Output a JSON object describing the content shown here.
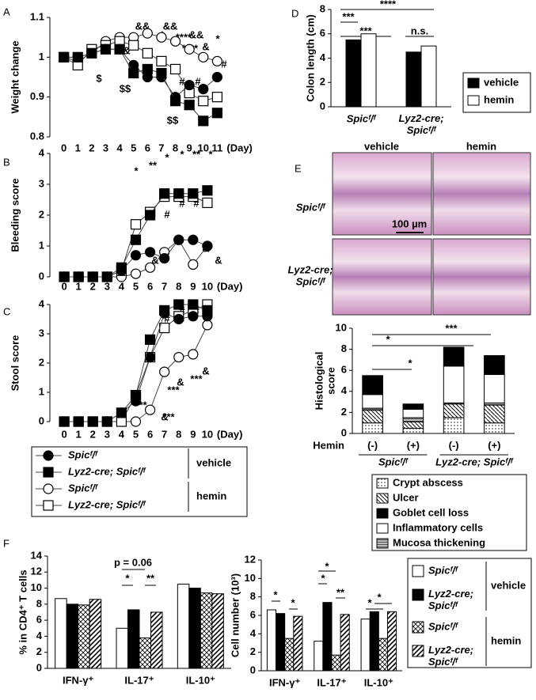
{
  "chart_data": [
    {
      "panel": "A",
      "type": "line",
      "ylabel": "Weight change",
      "xlabel": "(Day)",
      "x": [
        0,
        1,
        2,
        3,
        4,
        5,
        6,
        7,
        8,
        9,
        10,
        11
      ],
      "xlim": [
        -1,
        12
      ],
      "xticks": [
        0,
        1,
        2,
        3,
        4,
        5,
        6,
        7,
        8,
        9,
        10,
        11
      ],
      "ylim": [
        0.8,
        1.1
      ],
      "yticks": [
        0.8,
        0.9,
        1,
        1.1
      ],
      "series": [
        {
          "name": "Spicᶠ/ᶠ",
          "marker": "circle",
          "color": "#000000",
          "values": [
            1,
            1,
            1.01,
            1.02,
            1.02,
            0.98,
            0.95,
            0.95,
            0.9,
            0.93,
            0.92,
            0.95
          ]
        },
        {
          "name": "Lyz2-cre; Spicᶠ/ᶠ",
          "marker": "square",
          "color": "#000000",
          "values": [
            1,
            1,
            1.01,
            1.02,
            1.02,
            0.96,
            0.97,
            0.96,
            0.89,
            0.88,
            0.84,
            0.86
          ]
        },
        {
          "name": "Spicᶠ/ᶠ",
          "marker": "circle",
          "color": "#ffffff",
          "values": [
            1,
            0.99,
            1.01,
            1.04,
            1.05,
            1.05,
            1.06,
            1.05,
            1.04,
            1.02,
            1.0,
            0.99
          ]
        },
        {
          "name": "Lyz2-cre; Spicᶠ/ᶠ",
          "marker": "square",
          "color": "#ffffff",
          "values": [
            1,
            0.98,
            1.02,
            1.03,
            1.04,
            1.03,
            1.01,
            0.99,
            0.97,
            0.91,
            0.89,
            0.9
          ]
        }
      ],
      "legend_groups": [
        "vehicle",
        "hemin"
      ],
      "annotations": [
        "$",
        "$$",
        "$$",
        "&",
        "&&",
        "&&",
        "*",
        "****",
        "&&",
        "****",
        "&",
        "*",
        "#",
        "#",
        "#"
      ]
    },
    {
      "panel": "B",
      "type": "line",
      "ylabel": "Bleeding score",
      "xlabel": "(Day)",
      "x": [
        0,
        1,
        2,
        3,
        4,
        5,
        6,
        7,
        8,
        9,
        10
      ],
      "xlim": [
        -1,
        11
      ],
      "xticks": [
        0,
        1,
        2,
        3,
        4,
        5,
        6,
        7,
        8,
        9,
        10
      ],
      "ylim": [
        0,
        4
      ],
      "yticks": [
        0,
        1,
        2,
        3,
        4
      ],
      "series": [
        {
          "marker": "circle",
          "color": "#000000",
          "values": [
            0,
            0,
            0,
            0,
            0.2,
            0.7,
            0.8,
            0.6,
            1.2,
            1.2,
            1.0
          ]
        },
        {
          "marker": "square",
          "color": "#000000",
          "values": [
            0,
            0,
            0,
            0,
            0.3,
            1.2,
            2.0,
            2.7,
            2.7,
            2.7,
            2.8
          ]
        },
        {
          "marker": "circle",
          "color": "#ffffff",
          "values": [
            0,
            0,
            0,
            0,
            0,
            0.1,
            0.3,
            0.8,
            1.2,
            0.4,
            1.0
          ]
        },
        {
          "marker": "square",
          "color": "#ffffff",
          "values": [
            0,
            0,
            0,
            0,
            0.2,
            1.7,
            2.1,
            2.6,
            2.6,
            2.6,
            2.4
          ]
        }
      ],
      "annotations": [
        "*",
        "**",
        "*",
        "*",
        "**",
        "*",
        "#",
        "#",
        "#",
        "&",
        "&",
        "&"
      ]
    },
    {
      "panel": "C",
      "type": "line",
      "ylabel": "Stool score",
      "xlabel": "(Day)",
      "x": [
        0,
        1,
        2,
        3,
        4,
        5,
        6,
        7,
        8,
        9,
        10
      ],
      "xlim": [
        -1,
        11
      ],
      "xticks": [
        0,
        1,
        2,
        3,
        4,
        5,
        6,
        7,
        8,
        9,
        10
      ],
      "ylim": [
        0,
        4
      ],
      "yticks": [
        0,
        1,
        2,
        3,
        4
      ],
      "series": [
        {
          "marker": "circle",
          "color": "#000000",
          "values": [
            0,
            0,
            0,
            0,
            0.3,
            0.7,
            2.2,
            3.7,
            3.5,
            3.6,
            3.6
          ]
        },
        {
          "marker": "square",
          "color": "#000000",
          "values": [
            0,
            0,
            0,
            0,
            0.3,
            0.9,
            2.8,
            3.8,
            4.0,
            4.0,
            3.8
          ]
        },
        {
          "marker": "circle",
          "color": "#ffffff",
          "values": [
            0,
            0,
            0,
            0,
            0,
            0,
            0.4,
            1.7,
            2.2,
            2.3,
            3.3
          ]
        },
        {
          "marker": "square",
          "color": "#ffffff",
          "values": [
            0,
            0,
            0,
            0,
            0,
            0.9,
            2.2,
            3.2,
            3.6,
            3.8,
            4.0
          ]
        }
      ],
      "annotations": [
        "#",
        "#",
        "#",
        "***",
        "***",
        "***",
        "&",
        "&",
        "***",
        "&"
      ]
    },
    {
      "panel": "D",
      "type": "bar",
      "ylabel": "Colon length (cm)",
      "categories": [
        "Spicᶠ/ᶠ",
        "Lyz2-cre;\nSpicᶠ/ᶠ"
      ],
      "ylim": [
        0,
        8
      ],
      "yticks": [
        0,
        2,
        4,
        6,
        8
      ],
      "series": [
        {
          "name": "vehicle",
          "color": "#000000",
          "values": [
            5.5,
            4.5
          ]
        },
        {
          "name": "hemin",
          "color": "#ffffff",
          "values": [
            6.0,
            5.0
          ]
        }
      ],
      "annotations": [
        "***",
        "***",
        "****",
        "n.s."
      ]
    },
    {
      "panel": "E",
      "type": "bar",
      "stacked": true,
      "ylabel": "Histological\nscore",
      "column_titles": [
        "vehicle",
        "hemin"
      ],
      "row_titles": [
        "Spicᶠ/ᶠ",
        "Lyz2-cre;\nSpicᶠ/ᶠ"
      ],
      "scale_bar": "100 µm",
      "row_label": "Hemin",
      "categories": [
        "(-)",
        "(+)",
        "(-)",
        "(+)"
      ],
      "groups": [
        "Spicᶠ/ᶠ",
        "Lyz2-cre; Spicᶠ/ᶠ"
      ],
      "ylim": [
        0,
        10
      ],
      "yticks": [
        0,
        2,
        4,
        6,
        8,
        10
      ],
      "series": [
        {
          "name": "Crypt abscess",
          "color": "#ffffff",
          "pattern": "dots",
          "values": [
            1.0,
            0.5,
            1.5,
            1.0
          ]
        },
        {
          "name": "Ulcer",
          "color": "#ffffff",
          "pattern": "diag",
          "values": [
            1.2,
            0.6,
            1.3,
            1.7
          ]
        },
        {
          "name": "Goblet cell loss",
          "color": "#000000",
          "values": [
            1.8,
            0.5,
            1.8,
            1.8
          ]
        },
        {
          "name": "Inflammatory cells",
          "color": "#ffffff",
          "values": [
            1.3,
            0.8,
            3.5,
            2.7
          ]
        },
        {
          "name": "Mucosa thickening",
          "color": "#ffffff",
          "pattern": "mucosa",
          "values": [
            0.2,
            0.4,
            0.1,
            0.2
          ]
        }
      ],
      "annotations": [
        "***",
        "*",
        "*"
      ]
    },
    {
      "panel": "F",
      "type": "bar",
      "ylabel": "% in CD4⁺ T cells",
      "categories": [
        "IFN-γ⁺",
        "IL-17⁺",
        "IL-10⁺"
      ],
      "ylim": [
        0,
        14
      ],
      "yticks": [
        0,
        2,
        4,
        6,
        8,
        10,
        12,
        14
      ],
      "series": [
        {
          "name": "Spicᶠ/ᶠ",
          "color": "#ffffff",
          "values": [
            8.7,
            5.0,
            10.5
          ]
        },
        {
          "name": "Lyz2-cre;\nSpicᶠ/ᶠ",
          "color": "#000000",
          "values": [
            8.0,
            7.3,
            10.0
          ]
        },
        {
          "name": "Spicᶠ/ᶠ",
          "color": "#ffffff",
          "pattern": "cross",
          "values": [
            7.9,
            3.8,
            9.4
          ]
        },
        {
          "name": "Lyz2-cre;\nSpicᶠ/ᶠ",
          "color": "#ffffff",
          "pattern": "zig",
          "values": [
            8.6,
            7.0,
            9.3
          ]
        }
      ],
      "legend_groups": [
        "vehicle",
        "hemin"
      ],
      "annotations": [
        "p = 0.06",
        "*",
        "**"
      ]
    },
    {
      "type": "bar",
      "ylabel": "Cell number (10³)",
      "categories": [
        "IFN-γ⁺",
        "IL-17⁺",
        "IL-10⁺"
      ],
      "ylim": [
        0,
        12
      ],
      "yticks": [
        0,
        2,
        4,
        6,
        8,
        10,
        12
      ],
      "series": [
        {
          "color": "#ffffff",
          "values": [
            6.6,
            3.2,
            5.6
          ]
        },
        {
          "color": "#000000",
          "values": [
            6.2,
            7.4,
            6.4
          ]
        },
        {
          "color": "#ffffff",
          "pattern": "cross",
          "values": [
            3.5,
            1.7,
            3.5
          ]
        },
        {
          "color": "#ffffff",
          "pattern": "zig",
          "values": [
            5.9,
            6.1,
            6.4
          ]
        }
      ],
      "annotations": [
        "*",
        "*",
        "*",
        "*",
        "**",
        "*",
        "*"
      ]
    }
  ]
}
